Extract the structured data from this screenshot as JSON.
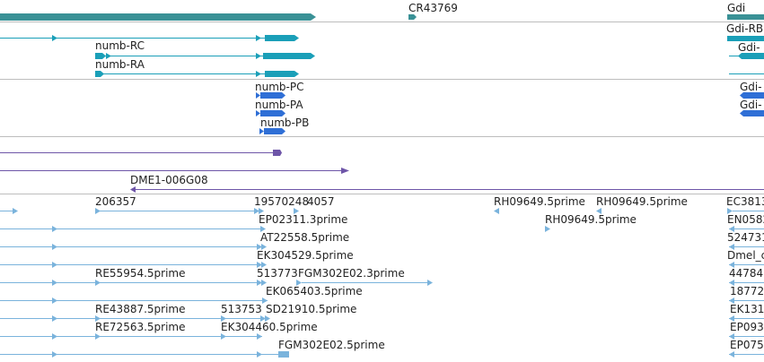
{
  "tracks": {
    "top_genes": {
      "labels": [
        "CR43769",
        "Gdi"
      ]
    },
    "transcripts": {
      "labels": [
        "numb-RC",
        "numb-RA",
        "Gdi-RB",
        "Gdi-"
      ]
    },
    "proteins": {
      "labels": [
        "numb-PC",
        "numb-PA",
        "numb-PB",
        "Gdi-",
        "Gdi-"
      ]
    },
    "primers": {
      "labels": [
        "DME1-006G08"
      ]
    },
    "ests": {
      "labels": [
        "206357",
        "19570248",
        "4057",
        "RH09649.5prime",
        "RH09649.5prime",
        "EC3813",
        "EP02311.3prime",
        "RH09649.5prime",
        "EN0582",
        "AT22558.5prime",
        "524731",
        "EK304529.5prime",
        "Dmel_c",
        "RE55954.5prime",
        "513773",
        "FGM302E02.3prime",
        "44784",
        "EK065403.5prime",
        "18772",
        "RE43887.5prime",
        "513753",
        "SD21910.5prime",
        "EK131",
        "RE72563.5prime",
        "EK304460.5prime",
        "EP093",
        "FGM302E02.5prime",
        "EP075"
      ]
    }
  },
  "colors": {
    "gene": "#3a9196",
    "transcript": "#1a9fb8",
    "protein": "#2f6fd6",
    "primer": "#6e55a8",
    "est": "#7ab3dc",
    "separator": "#bdbdbd"
  }
}
